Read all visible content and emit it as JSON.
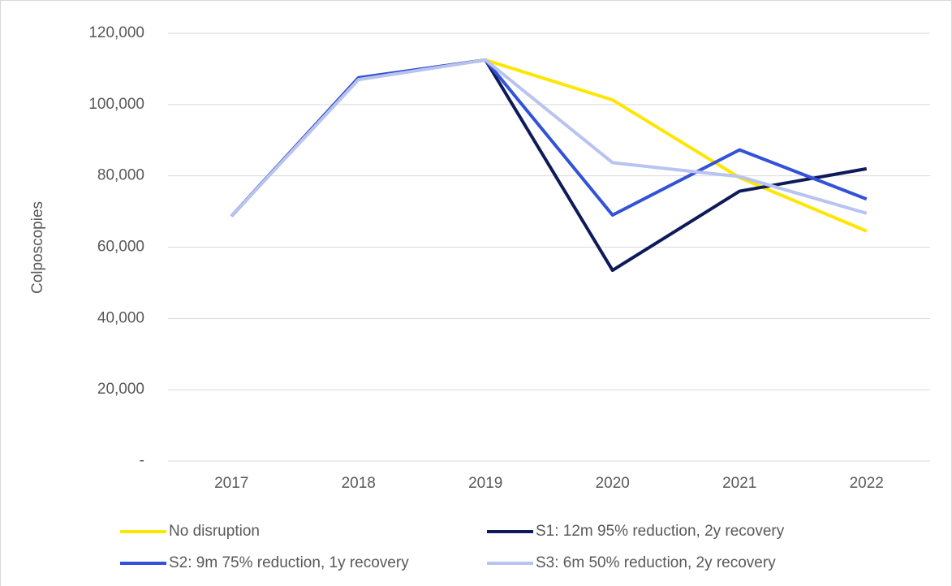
{
  "chart_data": {
    "type": "line",
    "y_label": "Colposcopies",
    "categories": [
      "2017",
      "2018",
      "2019",
      "2020",
      "2021",
      "2022"
    ],
    "series": [
      {
        "name": "No disruption",
        "color": "#FFE600",
        "values": [
          68700,
          107500,
          112500,
          101300,
          79500,
          64500
        ]
      },
      {
        "name": "S1: 12m 95% reduction, 2y recovery",
        "color": "#0E1A5A",
        "values": [
          68700,
          107500,
          112500,
          53500,
          75700,
          82000
        ]
      },
      {
        "name": "S2: 9m 75% reduction, 1y recovery",
        "color": "#3352D8",
        "values": [
          68700,
          107500,
          112500,
          69000,
          87300,
          73500
        ]
      },
      {
        "name": "S3: 6m 50% reduction, 2y recovery",
        "color": "#B8C3F0",
        "values": [
          68700,
          107000,
          112500,
          83700,
          79800,
          69500
        ]
      }
    ],
    "ylim": [
      0,
      120000
    ],
    "yticks": [
      {
        "value": 0,
        "label": "-"
      },
      {
        "value": 20000,
        "label": "20,000"
      },
      {
        "value": 40000,
        "label": "40,000"
      },
      {
        "value": 60000,
        "label": "60,000"
      },
      {
        "value": 80000,
        "label": "80,000"
      },
      {
        "value": 100000,
        "label": "100,000"
      },
      {
        "value": 120000,
        "label": "120,000"
      }
    ],
    "grid": true
  }
}
